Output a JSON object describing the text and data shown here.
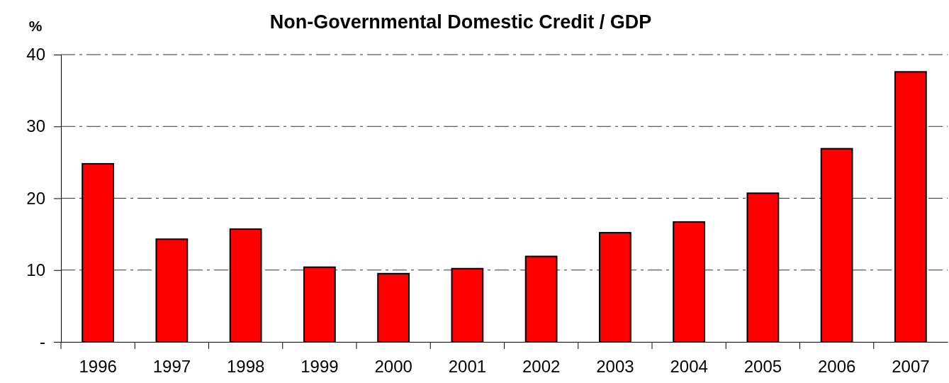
{
  "chart_data": {
    "type": "bar",
    "title": "Non-Governmental Domestic Credit / GDP",
    "ylabel": "%",
    "categories": [
      "1996",
      "1997",
      "1998",
      "1999",
      "2000",
      "2001",
      "2002",
      "2003",
      "2004",
      "2005",
      "2006",
      "2007"
    ],
    "values": [
      24.8,
      14.3,
      15.7,
      10.4,
      9.5,
      10.2,
      11.9,
      15.2,
      16.7,
      20.7,
      26.9,
      37.6
    ],
    "color": "#ff0000",
    "ylim": [
      0,
      40
    ],
    "yticks": [
      {
        "value": 0,
        "label": "-"
      },
      10,
      20,
      30,
      40
    ],
    "grid": "y"
  }
}
